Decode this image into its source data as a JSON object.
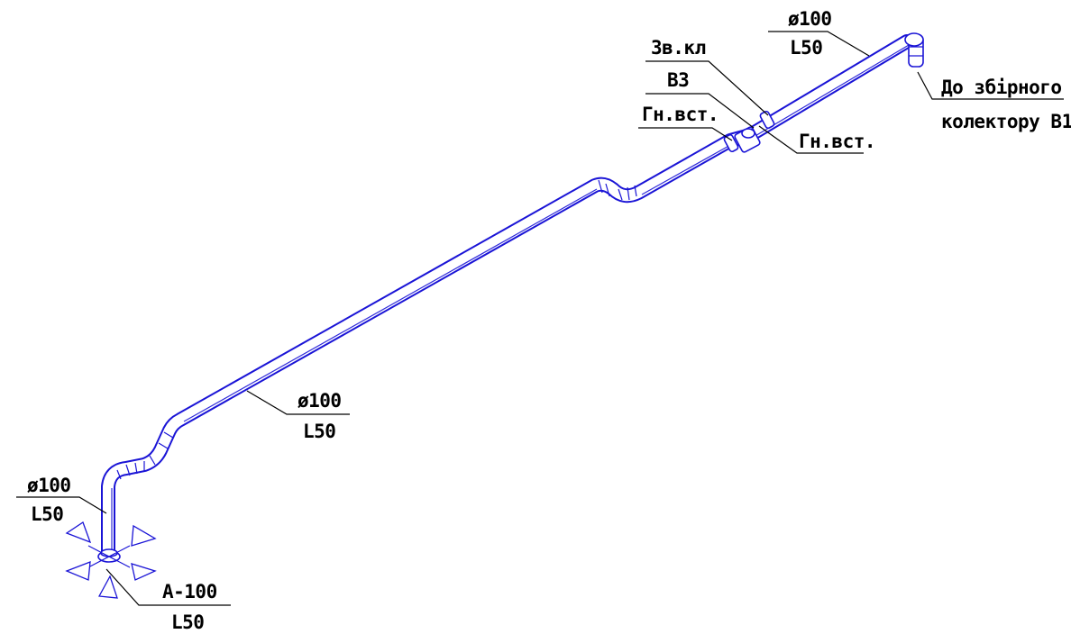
{
  "diagram": {
    "colors": {
      "pipe": "#1a14d6",
      "text": "#000000",
      "background": "#ffffff"
    },
    "labels": {
      "top_diameter": "ø100",
      "top_length": "L50",
      "valve": "Зв.кл",
      "valve_sub": "В3",
      "insert_left": "Гн.вст.",
      "insert_right": "Гн.вст.",
      "collector_line1": "До збірного",
      "collector_line2": "колектору В1",
      "mid_diameter": "ø100",
      "mid_length": "L50",
      "riser_diameter": "ø100",
      "riser_length": "L50",
      "outlet_code": "А-100",
      "outlet_length": "L50"
    }
  }
}
